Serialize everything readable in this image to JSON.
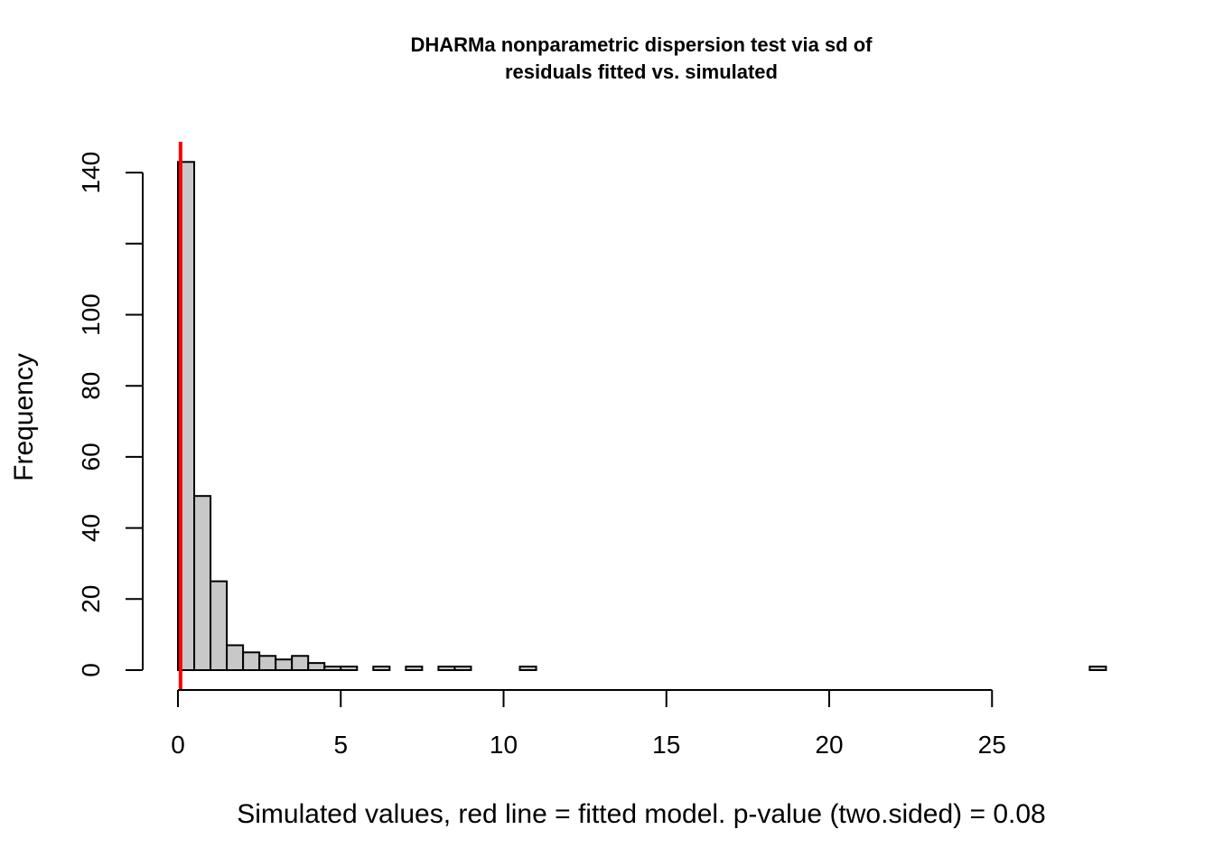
{
  "chart_data": {
    "type": "bar",
    "title_lines": [
      "DHARMa nonparametric dispersion test via sd of",
      "residuals fitted vs. simulated"
    ],
    "xlabel": "Simulated values, red line = fitted model. p-value (two.sided) = 0.08",
    "ylabel": "Frequency",
    "bin_width": 0.5,
    "bin_start": 0,
    "counts": [
      143,
      49,
      25,
      7,
      5,
      4,
      3,
      4,
      2,
      1,
      1,
      0,
      1,
      0,
      1,
      0,
      1,
      1,
      0,
      0,
      0,
      1,
      0,
      0,
      0,
      0,
      0,
      0,
      0,
      0,
      0,
      0,
      0,
      0,
      0,
      0,
      0,
      0,
      0,
      0,
      0,
      0,
      0,
      0,
      0,
      0,
      0,
      0,
      0,
      0,
      0,
      0,
      0,
      0,
      0,
      0,
      1
    ],
    "xlim": [
      0,
      28.5
    ],
    "ylim": [
      0,
      145
    ],
    "x_ticks": [
      0,
      5,
      10,
      15,
      20,
      25
    ],
    "x_tick_labels": [
      "0",
      "5",
      "10",
      "15",
      "20",
      "25"
    ],
    "y_ticks": [
      0,
      20,
      40,
      60,
      80,
      100,
      120,
      140
    ],
    "y_tick_labels": [
      "0",
      "20",
      "40",
      "60",
      "80",
      "100",
      "",
      "140"
    ],
    "observed_value": 0.08,
    "observed_color": "#ff0000",
    "bar_fill": "#c8c8c8",
    "grid": false,
    "legend": "none"
  }
}
